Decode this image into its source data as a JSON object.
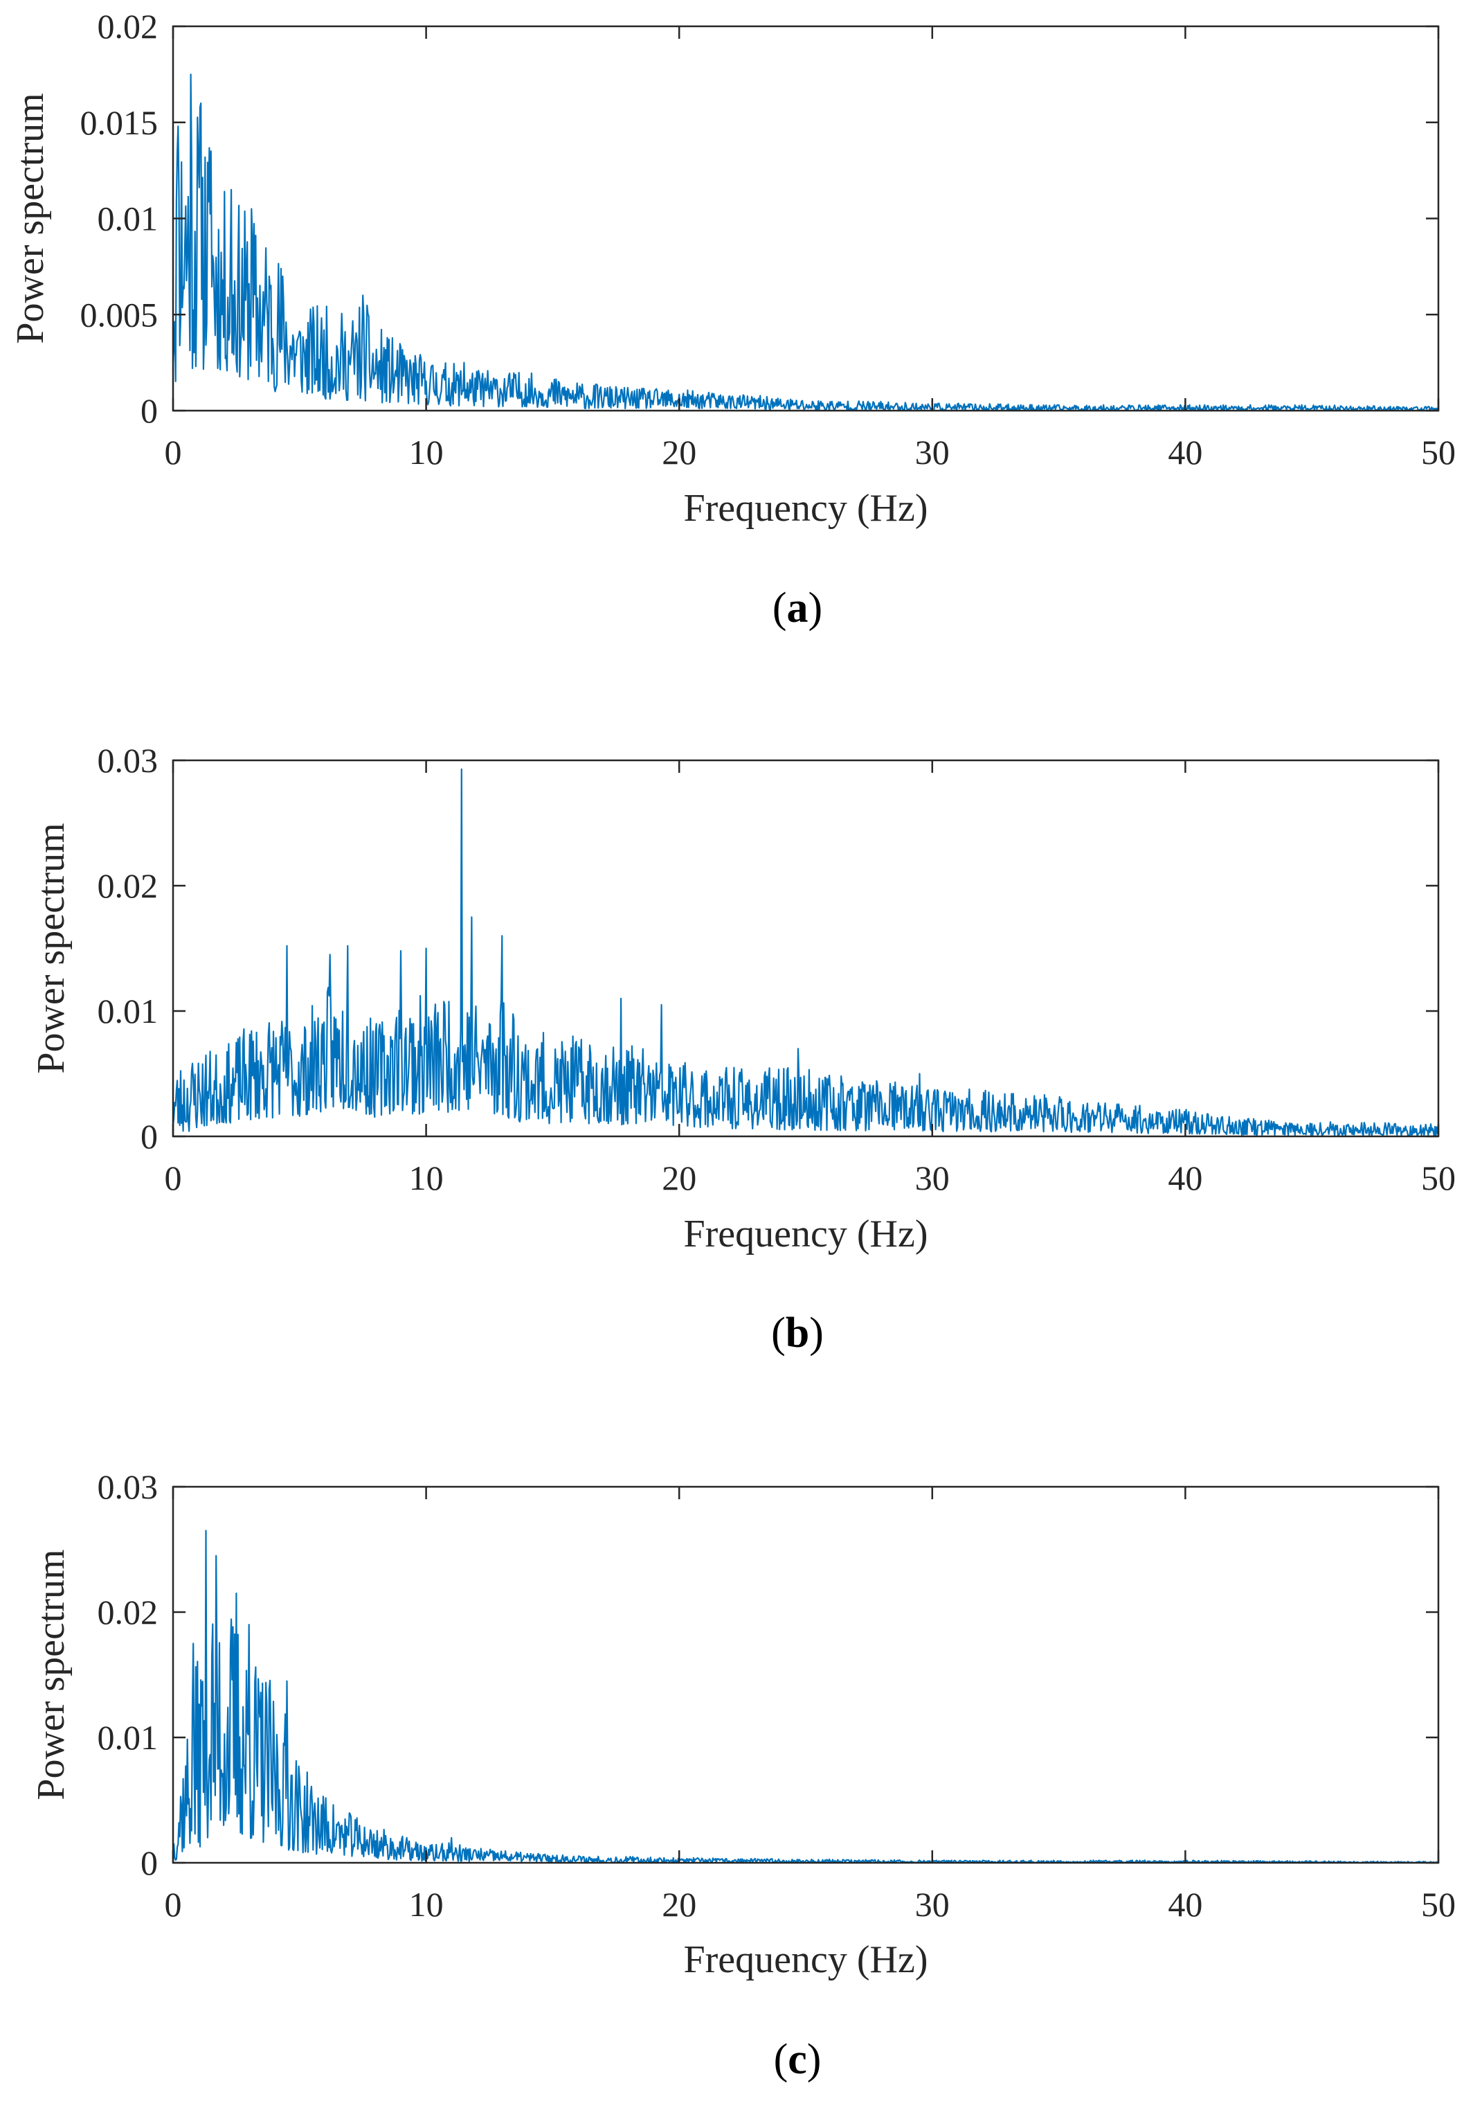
{
  "colors": {
    "series": "#0072BD",
    "axis": "#262626"
  },
  "chart_data": [
    {
      "type": "line",
      "panel": "a",
      "title": "",
      "xlabel": "Frequency (Hz)",
      "ylabel": "Power spectrum",
      "xlim": [
        0,
        50
      ],
      "ylim": [
        0,
        0.02
      ],
      "xticks": [
        0,
        10,
        20,
        30,
        40,
        50
      ],
      "xtick_labels": [
        "0",
        "10",
        "20",
        "30",
        "40",
        "50"
      ],
      "yticks": [
        0,
        0.005,
        0.01,
        0.015,
        0.02
      ],
      "ytick_labels": [
        "0",
        "0.005",
        "0.01",
        "0.015",
        "0.02"
      ],
      "caption": {
        "open": "(",
        "letter": "a",
        "close": ")"
      },
      "envelope": {
        "f": [
          0,
          0.3,
          0.7,
          1.2,
          2.0,
          3.0,
          4.0,
          5.0,
          6.0,
          7.0,
          7.5,
          8.0,
          9.0,
          10.0,
          12.0,
          14.0,
          16.0,
          18.0,
          20.0,
          22.0,
          25.0,
          30.0,
          35.0,
          40.0,
          45.0,
          50.0
        ],
        "max": [
          0.016,
          0.0165,
          0.0175,
          0.016,
          0.0115,
          0.0105,
          0.009,
          0.0055,
          0.0055,
          0.005,
          0.006,
          0.0045,
          0.0035,
          0.0028,
          0.0022,
          0.002,
          0.0015,
          0.0012,
          0.0011,
          0.0009,
          0.0006,
          0.0004,
          0.0003,
          0.0003,
          0.0003,
          0.0002
        ],
        "min": [
          0.0,
          0.003,
          0.002,
          0.002,
          0.002,
          0.0015,
          0.001,
          0.0008,
          0.0006,
          0.0005,
          0.0005,
          0.0004,
          0.0003,
          0.0003,
          0.0002,
          0.0002,
          0.0001,
          0.0001,
          0.0001,
          0.0001,
          0.0,
          0.0,
          0.0,
          0.0,
          0.0,
          0.0
        ]
      },
      "peaks": [
        {
          "f": 0.2,
          "v": 0.0148
        },
        {
          "f": 0.7,
          "v": 0.0175
        },
        {
          "f": 1.1,
          "v": 0.016
        },
        {
          "f": 1.5,
          "v": 0.0135
        },
        {
          "f": 2.3,
          "v": 0.0115
        },
        {
          "f": 3.1,
          "v": 0.0105
        },
        {
          "f": 7.5,
          "v": 0.006
        },
        {
          "f": 11.5,
          "v": 0.0025
        }
      ],
      "seed": 11
    },
    {
      "type": "line",
      "panel": "b",
      "title": "",
      "xlabel": "Frequency (Hz)",
      "ylabel": "Power spectrum",
      "xlim": [
        0,
        50
      ],
      "ylim": [
        0,
        0.03
      ],
      "xticks": [
        0,
        10,
        20,
        30,
        40,
        50
      ],
      "xtick_labels": [
        "0",
        "10",
        "20",
        "30",
        "40",
        "50"
      ],
      "yticks": [
        0,
        0.01,
        0.02,
        0.03
      ],
      "ytick_labels": [
        "0",
        "0.01",
        "0.02",
        "0.03"
      ],
      "caption": {
        "open": "(",
        "letter": "b",
        "close": ")"
      },
      "envelope": {
        "f": [
          0,
          1.0,
          2.0,
          3.0,
          4.0,
          5.0,
          6.0,
          7.0,
          8.0,
          9.0,
          10.0,
          11.0,
          12.0,
          13.0,
          14.0,
          15.0,
          17.0,
          19.0,
          20.0,
          22.0,
          25.0,
          30.0,
          35.0,
          40.0,
          42.0,
          45.0,
          50.0
        ],
        "max": [
          0.0055,
          0.007,
          0.007,
          0.009,
          0.01,
          0.009,
          0.012,
          0.012,
          0.009,
          0.012,
          0.011,
          0.012,
          0.011,
          0.012,
          0.009,
          0.008,
          0.008,
          0.007,
          0.006,
          0.0055,
          0.0055,
          0.004,
          0.0033,
          0.0022,
          0.0015,
          0.0012,
          0.001
        ],
        "min": [
          0.0,
          0.0005,
          0.001,
          0.0012,
          0.0015,
          0.0015,
          0.002,
          0.002,
          0.0015,
          0.002,
          0.0015,
          0.002,
          0.002,
          0.0015,
          0.001,
          0.001,
          0.001,
          0.0008,
          0.0008,
          0.0006,
          0.0005,
          0.0004,
          0.0003,
          0.0002,
          0.0001,
          0.0001,
          0.0
        ]
      },
      "peaks": [
        {
          "f": 4.5,
          "v": 0.0152
        },
        {
          "f": 6.2,
          "v": 0.0145
        },
        {
          "f": 6.9,
          "v": 0.0152
        },
        {
          "f": 9.0,
          "v": 0.0148
        },
        {
          "f": 10.0,
          "v": 0.015
        },
        {
          "f": 11.4,
          "v": 0.0293
        },
        {
          "f": 11.8,
          "v": 0.0175
        },
        {
          "f": 13.0,
          "v": 0.016
        },
        {
          "f": 17.7,
          "v": 0.011
        },
        {
          "f": 19.3,
          "v": 0.0105
        },
        {
          "f": 24.7,
          "v": 0.007
        },
        {
          "f": 29.5,
          "v": 0.005
        }
      ],
      "seed": 23
    },
    {
      "type": "line",
      "panel": "c",
      "title": "",
      "xlabel": "Frequency (Hz)",
      "ylabel": "Power spectrum",
      "xlim": [
        0,
        50
      ],
      "ylim": [
        0,
        0.03
      ],
      "xticks": [
        0,
        10,
        20,
        30,
        40,
        50
      ],
      "xtick_labels": [
        "0",
        "10",
        "20",
        "30",
        "40",
        "50"
      ],
      "yticks": [
        0,
        0.01,
        0.02,
        0.03
      ],
      "ytick_labels": [
        "0",
        "0.01",
        "0.02",
        "0.03"
      ],
      "caption": {
        "open": "(",
        "letter": "c",
        "close": ")"
      },
      "envelope": {
        "f": [
          0,
          0.3,
          0.6,
          1.0,
          1.3,
          1.8,
          2.5,
          3.0,
          3.5,
          4.0,
          4.5,
          5.0,
          6.0,
          7.0,
          8.0,
          9.0,
          10.0,
          11.0,
          12.0,
          14.0,
          16.0,
          18.0,
          20.0,
          25.0,
          30.0,
          40.0,
          50.0
        ],
        "max": [
          0.002,
          0.008,
          0.012,
          0.017,
          0.022,
          0.022,
          0.02,
          0.018,
          0.016,
          0.014,
          0.012,
          0.008,
          0.0055,
          0.004,
          0.003,
          0.0022,
          0.0015,
          0.0016,
          0.0012,
          0.0008,
          0.0006,
          0.0005,
          0.0004,
          0.0003,
          0.0002,
          0.0002,
          0.0001
        ],
        "min": [
          0.0,
          0.0005,
          0.001,
          0.001,
          0.002,
          0.002,
          0.002,
          0.0015,
          0.0015,
          0.001,
          0.001,
          0.0008,
          0.0006,
          0.0005,
          0.0003,
          0.0002,
          0.0001,
          0.0001,
          0.0001,
          0.0001,
          0.0,
          0.0,
          0.0,
          0.0,
          0.0,
          0.0,
          0.0
        ]
      },
      "peaks": [
        {
          "f": 1.3,
          "v": 0.0265
        },
        {
          "f": 1.7,
          "v": 0.0245
        },
        {
          "f": 2.5,
          "v": 0.0215
        },
        {
          "f": 0.8,
          "v": 0.0175
        },
        {
          "f": 3.0,
          "v": 0.019
        },
        {
          "f": 4.5,
          "v": 0.0145
        },
        {
          "f": 11.0,
          "v": 0.002
        }
      ],
      "seed": 37
    }
  ]
}
